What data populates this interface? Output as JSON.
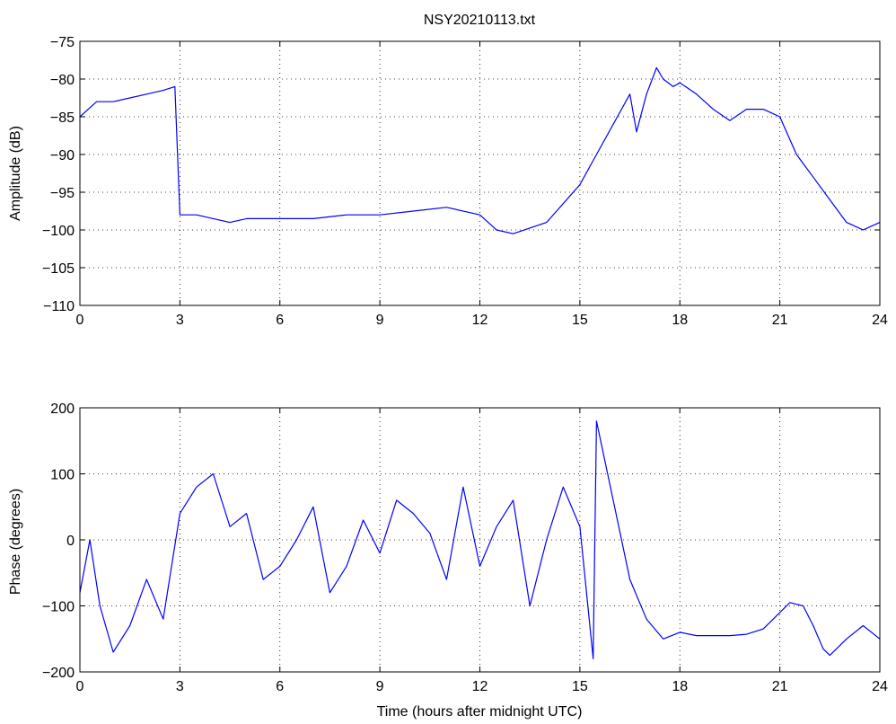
{
  "title": "NSY20210113.txt",
  "colors": {
    "series": "#0000ff",
    "axes": "#000000",
    "grid": "#000000",
    "background": "#ffffff"
  },
  "chart_data": [
    {
      "type": "line",
      "title": "NSY20210113.txt",
      "xlabel": "",
      "ylabel": "Amplitude (dB)",
      "xlim": [
        0,
        24
      ],
      "ylim": [
        -110,
        -75
      ],
      "xticks": [
        "0",
        "3",
        "6",
        "9",
        "12",
        "15",
        "18",
        "21",
        "24"
      ],
      "yticks": [
        "−75",
        "−80",
        "−85",
        "−90",
        "−95",
        "−100",
        "−105",
        "−110"
      ],
      "grid": true,
      "series": [
        {
          "x": [
            0,
            0.25,
            0.5,
            0.75,
            1,
            1.5,
            2,
            2.5,
            2.85,
            3,
            3.5,
            4,
            4.5,
            5,
            6,
            7,
            8,
            9,
            10,
            11,
            12,
            12.5,
            13,
            14,
            15,
            15.5,
            16,
            16.5,
            16.7,
            17,
            17.3,
            17.5,
            17.8,
            18,
            18.5,
            19,
            19.5,
            20,
            20.5,
            21,
            21.5,
            22,
            22.5,
            23,
            23.5,
            24
          ],
          "y": [
            -85,
            -84,
            -83,
            -83,
            -83,
            -82.5,
            -82,
            -81.5,
            -81,
            -98,
            -98,
            -98.5,
            -99,
            -98.5,
            -98.5,
            -98.5,
            -98,
            -98,
            -97.5,
            -97,
            -98,
            -100,
            -100.5,
            -99,
            -94,
            -90,
            -86,
            -82,
            -87,
            -82,
            -78.5,
            -80,
            -81,
            -80.5,
            -82,
            -84,
            -85.5,
            -84,
            -84,
            -85,
            -90,
            -93,
            -96,
            -99,
            -100,
            -99
          ]
        }
      ]
    },
    {
      "type": "line",
      "title": "",
      "xlabel": "Time (hours after midnight UTC)",
      "ylabel": "Phase (degrees)",
      "xlim": [
        0,
        24
      ],
      "ylim": [
        -200,
        200
      ],
      "xticks": [
        "0",
        "3",
        "6",
        "9",
        "12",
        "15",
        "18",
        "21",
        "24"
      ],
      "yticks": [
        "200",
        "100",
        "0",
        "−100",
        "−200"
      ],
      "grid": true,
      "series": [
        {
          "x": [
            0,
            0.3,
            0.6,
            1,
            1.5,
            2,
            2.5,
            3,
            3.5,
            4,
            4.5,
            5,
            5.5,
            6,
            6.5,
            7,
            7.5,
            8,
            8.5,
            9,
            9.5,
            10,
            10.5,
            11,
            11.5,
            12,
            12.5,
            13,
            13.5,
            14,
            14.5,
            15,
            15.4,
            15.5,
            16,
            16.5,
            17,
            17.5,
            18,
            18.5,
            19,
            19.5,
            20,
            20.5,
            21,
            21.3,
            21.7,
            22,
            22.3,
            22.5,
            23,
            23.5,
            24
          ],
          "y": [
            -80,
            0,
            -100,
            -170,
            -130,
            -60,
            -120,
            40,
            80,
            100,
            20,
            40,
            -60,
            -40,
            0,
            50,
            -80,
            -40,
            30,
            -20,
            60,
            40,
            10,
            -60,
            80,
            -40,
            20,
            60,
            -100,
            0,
            80,
            20,
            -180,
            180,
            60,
            -60,
            -120,
            -150,
            -140,
            -145,
            -145,
            -145,
            -143,
            -135,
            -110,
            -95,
            -100,
            -130,
            -165,
            -175,
            -150,
            -130,
            -150
          ]
        }
      ]
    }
  ]
}
